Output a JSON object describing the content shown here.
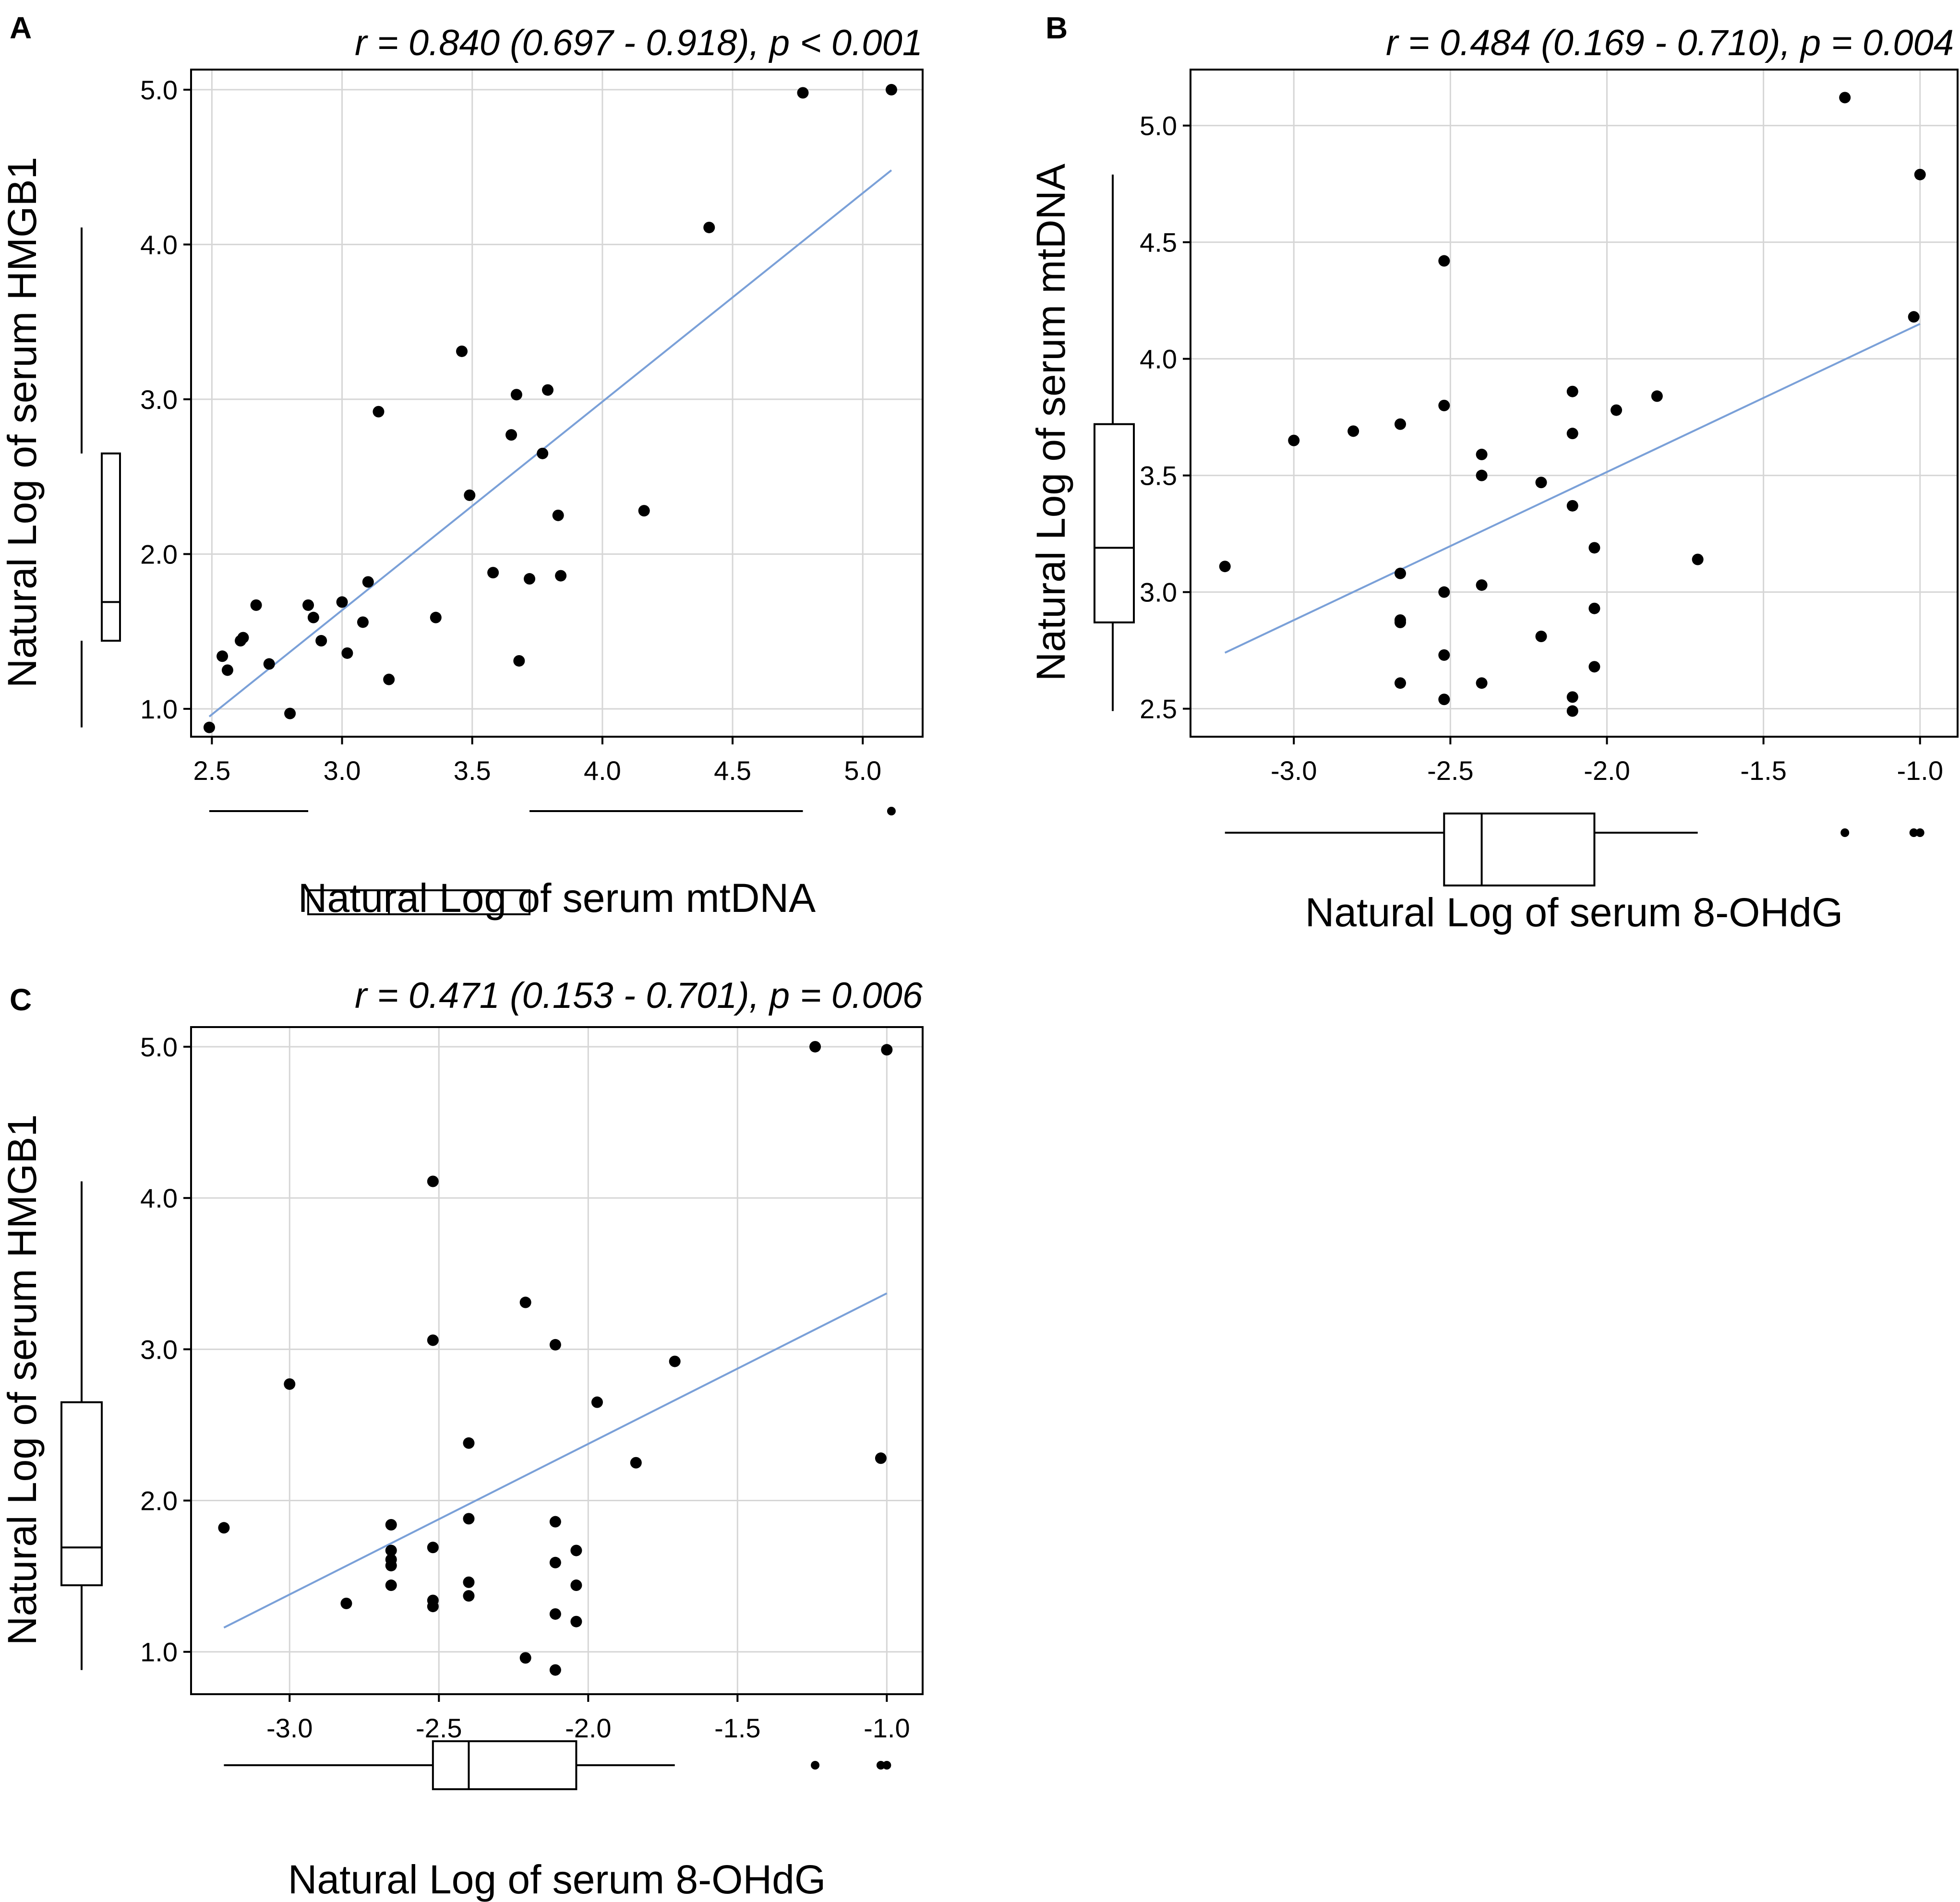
{
  "colors": {
    "line": "#7aa0d8",
    "grid": "#d6d6d6",
    "point": "#000000",
    "frame": "#000000"
  },
  "chart_data": [
    {
      "panel": "A",
      "type": "scatter",
      "stat": "r = 0.840 (0.697 - 0.918), p < 0.001",
      "xlabel": "Natural Log of serum mtDNA",
      "ylabel": "Natural Log of serum HMGB1",
      "xlim": [
        2.42,
        5.23
      ],
      "ylim": [
        0.82,
        5.13
      ],
      "xticks": [
        2.5,
        3.0,
        3.5,
        4.0,
        4.5,
        5.0
      ],
      "xtick_labels": [
        "2.5",
        "3.0",
        "3.5",
        "4.0",
        "4.5",
        "5.0"
      ],
      "yticks": [
        1.0,
        2.0,
        3.0,
        4.0,
        5.0
      ],
      "ytick_labels": [
        "1.0",
        "2.0",
        "3.0",
        "4.0",
        "5.0"
      ],
      "fit": {
        "x": [
          2.49,
          5.11
        ],
        "y": [
          0.95,
          4.48
        ]
      },
      "points": [
        [
          2.49,
          0.88
        ],
        [
          2.54,
          1.34
        ],
        [
          2.56,
          1.25
        ],
        [
          2.61,
          1.44
        ],
        [
          2.62,
          1.46
        ],
        [
          2.67,
          1.67
        ],
        [
          2.72,
          1.29
        ],
        [
          2.8,
          0.97
        ],
        [
          2.87,
          1.67
        ],
        [
          2.89,
          1.59
        ],
        [
          2.92,
          1.44
        ],
        [
          3.0,
          1.69
        ],
        [
          3.02,
          1.36
        ],
        [
          3.08,
          1.56
        ],
        [
          3.1,
          1.82
        ],
        [
          3.14,
          2.92
        ],
        [
          3.18,
          1.19
        ],
        [
          3.36,
          1.59
        ],
        [
          3.46,
          3.31
        ],
        [
          3.49,
          2.38
        ],
        [
          3.58,
          1.88
        ],
        [
          3.65,
          2.77
        ],
        [
          3.67,
          3.03
        ],
        [
          3.68,
          1.31
        ],
        [
          3.72,
          1.84
        ],
        [
          3.77,
          2.65
        ],
        [
          3.79,
          3.06
        ],
        [
          3.83,
          2.25
        ],
        [
          3.84,
          1.86
        ],
        [
          4.16,
          2.28
        ],
        [
          4.41,
          4.11
        ],
        [
          4.77,
          4.98
        ],
        [
          5.11,
          5.0
        ]
      ],
      "xbox": {
        "min": 2.49,
        "q1": 2.87,
        "median": 3.18,
        "q3": 3.72,
        "whisker_hi": 4.77,
        "outliers": [
          5.11
        ]
      },
      "ybox": {
        "min": 0.88,
        "q1": 1.44,
        "median": 1.69,
        "q3": 2.65,
        "whisker_hi": 4.11
      }
    },
    {
      "panel": "B",
      "type": "scatter",
      "stat": "r = 0.484 (0.169 - 0.710), p = 0.004",
      "xlabel": "Natural Log of serum 8-OHdG",
      "ylabel": "Natural Log of serum mtDNA",
      "xlim": [
        -3.33,
        -0.88
      ],
      "ylim": [
        2.38,
        5.24
      ],
      "xticks": [
        -3.0,
        -2.5,
        -2.0,
        -1.5,
        -1.0
      ],
      "xtick_labels": [
        "-3.0",
        "-2.5",
        "-2.0",
        "-1.5",
        "-1.0"
      ],
      "yticks": [
        2.5,
        3.0,
        3.5,
        4.0,
        4.5,
        5.0
      ],
      "ytick_labels": [
        "2.5",
        "3.0",
        "3.5",
        "4.0",
        "4.5",
        "5.0"
      ],
      "fit": {
        "x": [
          -3.22,
          -1.0
        ],
        "y": [
          2.74,
          4.15
        ]
      },
      "points": [
        [
          -3.22,
          3.11
        ],
        [
          -3.0,
          3.65
        ],
        [
          -2.81,
          3.69
        ],
        [
          -2.66,
          3.72
        ],
        [
          -2.66,
          3.08
        ],
        [
          -2.66,
          2.88
        ],
        [
          -2.66,
          2.87
        ],
        [
          -2.66,
          2.61
        ],
        [
          -2.52,
          4.42
        ],
        [
          -2.52,
          3.8
        ],
        [
          -2.52,
          3.0
        ],
        [
          -2.52,
          2.73
        ],
        [
          -2.52,
          2.54
        ],
        [
          -2.4,
          3.59
        ],
        [
          -2.4,
          3.5
        ],
        [
          -2.4,
          3.03
        ],
        [
          -2.4,
          2.61
        ],
        [
          -2.21,
          3.47
        ],
        [
          -2.21,
          2.81
        ],
        [
          -2.11,
          3.86
        ],
        [
          -2.11,
          3.68
        ],
        [
          -2.11,
          3.37
        ],
        [
          -2.11,
          2.55
        ],
        [
          -2.11,
          2.49
        ],
        [
          -2.04,
          3.19
        ],
        [
          -2.04,
          2.93
        ],
        [
          -2.04,
          2.68
        ],
        [
          -1.97,
          3.78
        ],
        [
          -1.84,
          3.84
        ],
        [
          -1.71,
          3.14
        ],
        [
          -1.24,
          5.12
        ],
        [
          -1.02,
          4.18
        ],
        [
          -1.0,
          4.79
        ]
      ],
      "xbox": {
        "min": -3.22,
        "q1": -2.52,
        "median": -2.4,
        "q3": -2.04,
        "whisker_hi": -1.71,
        "outliers": [
          -1.24,
          -1.02,
          -1.0
        ]
      },
      "ybox": {
        "min": 2.49,
        "q1": 2.87,
        "median": 3.19,
        "q3": 3.72,
        "whisker_hi": 4.79
      }
    },
    {
      "panel": "C",
      "type": "scatter",
      "stat": "r = 0.471 (0.153 - 0.701), p = 0.006",
      "xlabel": "Natural Log of serum 8-OHdG",
      "ylabel": "Natural Log of serum HMGB1",
      "xlim": [
        -3.33,
        -0.88
      ],
      "ylim": [
        0.72,
        5.13
      ],
      "xticks": [
        -3.0,
        -2.5,
        -2.0,
        -1.5,
        -1.0
      ],
      "xtick_labels": [
        "-3.0",
        "-2.5",
        "-2.0",
        "-1.5",
        "-1.0"
      ],
      "yticks": [
        1.0,
        2.0,
        3.0,
        4.0,
        5.0
      ],
      "ytick_labels": [
        "1.0",
        "2.0",
        "3.0",
        "4.0",
        "5.0"
      ],
      "fit": {
        "x": [
          -3.22,
          -1.0
        ],
        "y": [
          1.16,
          3.37
        ]
      },
      "points": [
        [
          -3.22,
          1.82
        ],
        [
          -3.0,
          2.77
        ],
        [
          -2.81,
          1.32
        ],
        [
          -2.66,
          1.84
        ],
        [
          -2.66,
          1.67
        ],
        [
          -2.66,
          1.61
        ],
        [
          -2.66,
          1.57
        ],
        [
          -2.66,
          1.44
        ],
        [
          -2.52,
          4.11
        ],
        [
          -2.52,
          3.06
        ],
        [
          -2.52,
          1.69
        ],
        [
          -2.52,
          1.34
        ],
        [
          -2.52,
          1.3
        ],
        [
          -2.4,
          2.38
        ],
        [
          -2.4,
          1.88
        ],
        [
          -2.4,
          1.46
        ],
        [
          -2.4,
          1.37
        ],
        [
          -2.21,
          3.31
        ],
        [
          -2.21,
          0.96
        ],
        [
          -2.11,
          3.03
        ],
        [
          -2.11,
          1.86
        ],
        [
          -2.11,
          1.59
        ],
        [
          -2.11,
          1.25
        ],
        [
          -2.11,
          0.88
        ],
        [
          -2.04,
          1.67
        ],
        [
          -2.04,
          1.44
        ],
        [
          -2.04,
          1.2
        ],
        [
          -1.97,
          2.65
        ],
        [
          -1.84,
          2.25
        ],
        [
          -1.71,
          2.92
        ],
        [
          -1.24,
          5.0
        ],
        [
          -1.02,
          2.28
        ],
        [
          -1.0,
          4.98
        ]
      ],
      "xbox": {
        "min": -3.22,
        "q1": -2.52,
        "median": -2.4,
        "q3": -2.04,
        "whisker_hi": -1.71,
        "outliers": [
          -1.24,
          -1.02,
          -1.0
        ]
      },
      "ybox": {
        "min": 0.88,
        "q1": 1.44,
        "median": 1.69,
        "q3": 2.65,
        "whisker_hi": 4.11
      }
    }
  ]
}
